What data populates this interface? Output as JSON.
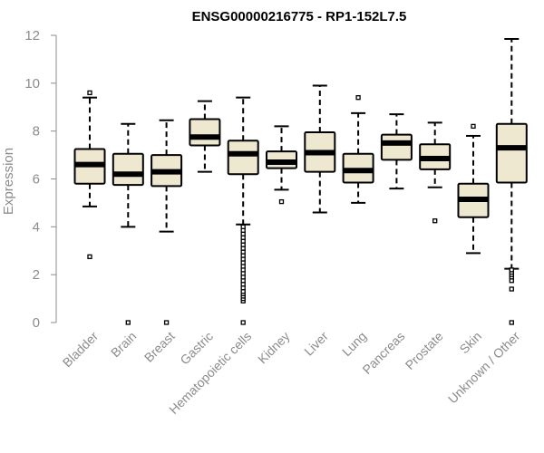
{
  "chart_data": {
    "type": "box",
    "title": "ENSG00000216775 - RP1-152L7.5",
    "ylabel": "Expression",
    "xlabel": "",
    "ylim": [
      0,
      12
    ],
    "yticks": [
      0,
      2,
      4,
      6,
      8,
      10,
      12
    ],
    "grid": false,
    "colors": {
      "box_fill": "#efe8d0",
      "box_stroke": "#000000",
      "axis": "#8c8c8c"
    },
    "categories": [
      "Bladder",
      "Brain",
      "Breast",
      "Gastric",
      "Hematopoietic cells",
      "Kidney",
      "Liver",
      "Lung",
      "Pancreas",
      "Prostate",
      "Skin",
      "Unknown / Other"
    ],
    "boxes": [
      {
        "q1": 5.8,
        "median": 6.6,
        "q3": 7.25,
        "whisker_low": 4.85,
        "whisker_high": 9.4,
        "outliers": [
          2.75,
          9.6
        ]
      },
      {
        "q1": 5.75,
        "median": 6.2,
        "q3": 7.05,
        "whisker_low": 4.0,
        "whisker_high": 8.3,
        "outliers": [
          0
        ]
      },
      {
        "q1": 5.7,
        "median": 6.3,
        "q3": 7.0,
        "whisker_low": 3.8,
        "whisker_high": 8.45,
        "outliers": [
          0
        ]
      },
      {
        "q1": 7.4,
        "median": 7.75,
        "q3": 8.5,
        "whisker_low": 6.3,
        "whisker_high": 9.25,
        "outliers": []
      },
      {
        "q1": 6.2,
        "median": 7.05,
        "q3": 7.6,
        "whisker_low": 4.1,
        "whisker_high": 9.4,
        "outliers": [
          0,
          0.9,
          1.0,
          1.1,
          1.2,
          1.3,
          1.45,
          1.6,
          1.75,
          1.9,
          2.05,
          2.2,
          2.35,
          2.5,
          2.65,
          2.8,
          2.95,
          3.1,
          3.25,
          3.4,
          3.55,
          3.7,
          3.85,
          4.0
        ]
      },
      {
        "q1": 6.45,
        "median": 6.7,
        "q3": 7.15,
        "whisker_low": 5.55,
        "whisker_high": 8.2,
        "outliers": [
          5.05
        ]
      },
      {
        "q1": 6.3,
        "median": 7.1,
        "q3": 7.95,
        "whisker_low": 4.6,
        "whisker_high": 9.9,
        "outliers": []
      },
      {
        "q1": 5.85,
        "median": 6.35,
        "q3": 7.05,
        "whisker_low": 5.0,
        "whisker_high": 8.75,
        "outliers": [
          9.4
        ]
      },
      {
        "q1": 6.8,
        "median": 7.5,
        "q3": 7.85,
        "whisker_low": 5.6,
        "whisker_high": 8.7,
        "outliers": []
      },
      {
        "q1": 6.4,
        "median": 6.85,
        "q3": 7.45,
        "whisker_low": 5.65,
        "whisker_high": 8.35,
        "outliers": [
          4.25
        ]
      },
      {
        "q1": 4.4,
        "median": 5.15,
        "q3": 5.8,
        "whisker_low": 2.9,
        "whisker_high": 7.8,
        "outliers": [
          8.2
        ]
      },
      {
        "q1": 5.85,
        "median": 7.3,
        "q3": 8.3,
        "whisker_low": 2.25,
        "whisker_high": 11.85,
        "outliers": [
          0,
          1.4,
          1.75,
          1.9,
          2.0,
          2.1,
          2.2
        ]
      }
    ]
  }
}
